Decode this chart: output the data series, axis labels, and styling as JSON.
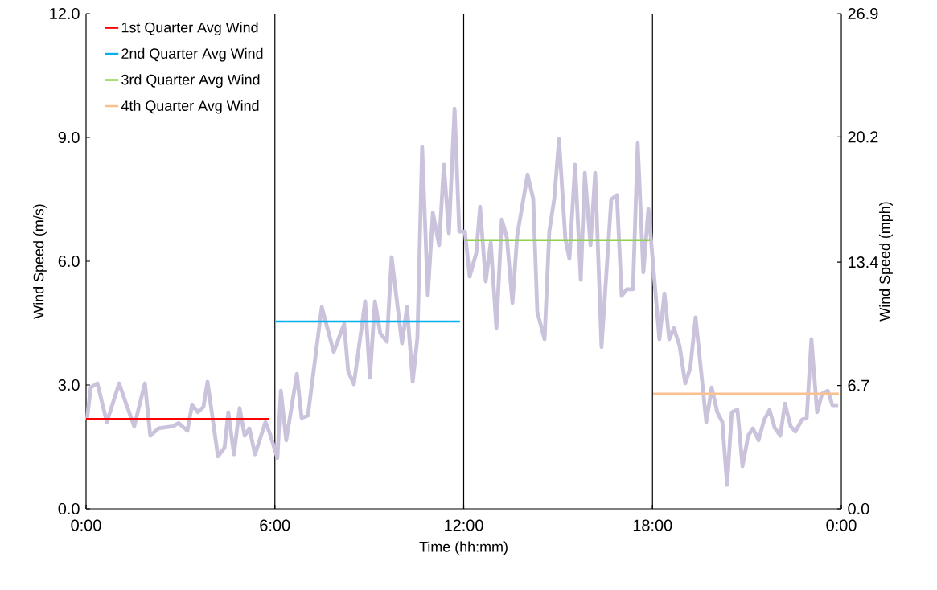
{
  "chart_data": {
    "type": "line",
    "xlabel": "Time (hh:mm)",
    "ylabel": "Wind Speed (m/s)",
    "y2label": "Wind Speed (mph)",
    "xlim": [
      0,
      24
    ],
    "ylim": [
      0,
      12
    ],
    "y2lim": [
      0,
      26.9
    ],
    "xticks": [
      {
        "value": 0,
        "label": "0:00"
      },
      {
        "value": 6,
        "label": "6:00"
      },
      {
        "value": 12,
        "label": "12:00"
      },
      {
        "value": 18,
        "label": "18:00"
      },
      {
        "value": 24,
        "label": "0:00"
      }
    ],
    "yticks": [
      {
        "value": 0,
        "label": "0.0"
      },
      {
        "value": 3,
        "label": "3.0"
      },
      {
        "value": 6,
        "label": "6.0"
      },
      {
        "value": 9,
        "label": "9.0"
      },
      {
        "value": 12,
        "label": "12.0"
      }
    ],
    "y2ticks": [
      {
        "value": 0,
        "label": "0.0"
      },
      6.7,
      13.4,
      20.2,
      26.9
    ],
    "legend": "top left",
    "grid": false,
    "ref_lines": [
      {
        "axis": "x",
        "value": 6,
        "color": "#000000"
      },
      {
        "axis": "x",
        "value": 12,
        "color": "#000000"
      },
      {
        "axis": "x",
        "value": 18,
        "color": "#000000"
      }
    ],
    "series": [
      {
        "color": "#cbc3dc",
        "x": [
          0.03,
          0.15,
          0.36,
          0.66,
          1.05,
          1.28,
          1.53,
          1.87,
          2.04,
          2.3,
          2.76,
          2.94,
          3.22,
          3.37,
          3.55,
          3.73,
          3.86,
          4.19,
          4.4,
          4.52,
          4.7,
          4.88,
          5.04,
          5.19,
          5.37,
          5.7,
          5.83,
          6.08,
          6.19,
          6.36,
          6.7,
          6.85,
          7.05,
          7.49,
          7.87,
          8.2,
          8.33,
          8.51,
          8.87,
          9.02,
          9.18,
          9.35,
          9.56,
          9.71,
          10.04,
          10.2,
          10.38,
          10.53,
          10.68,
          10.86,
          11.02,
          11.22,
          11.37,
          11.53,
          11.71,
          11.86,
          12.04,
          12.19,
          12.4,
          12.52,
          12.7,
          12.86,
          13.04,
          13.21,
          13.37,
          13.55,
          13.7,
          14.03,
          14.21,
          14.34,
          14.57,
          14.72,
          14.88,
          15.03,
          15.23,
          15.36,
          15.54,
          15.72,
          15.85,
          16.03,
          16.18,
          16.38,
          16.69,
          16.87,
          17.02,
          17.18,
          17.38,
          17.53,
          17.71,
          17.87,
          18.22,
          18.38,
          18.53,
          18.68,
          18.86,
          19.04,
          19.2,
          19.37,
          19.71,
          19.88,
          20.06,
          20.22,
          20.37,
          20.52,
          20.7,
          20.86,
          21.04,
          21.19,
          21.37,
          21.55,
          21.72,
          21.88,
          22.06,
          22.21,
          22.39,
          22.54,
          22.75,
          22.9,
          23.05,
          23.23,
          23.39,
          23.57,
          23.72,
          23.9
        ],
        "values": [
          2.16,
          2.94,
          3.04,
          2.1,
          3.04,
          2.53,
          2.0,
          3.04,
          1.77,
          1.95,
          2.0,
          2.08,
          1.89,
          2.53,
          2.34,
          2.47,
          3.08,
          1.27,
          1.48,
          2.34,
          1.32,
          2.44,
          1.77,
          1.95,
          1.32,
          2.1,
          1.85,
          1.23,
          2.86,
          1.66,
          3.27,
          2.2,
          2.26,
          4.89,
          3.8,
          4.48,
          3.33,
          3.02,
          5.03,
          3.18,
          5.03,
          4.25,
          4.05,
          6.1,
          4.01,
          4.89,
          3.08,
          4.15,
          8.77,
          5.18,
          7.17,
          6.39,
          8.34,
          6.68,
          9.7,
          6.72,
          6.72,
          5.63,
          6.2,
          7.32,
          5.51,
          6.45,
          4.38,
          7.01,
          6.58,
          4.99,
          6.62,
          8.1,
          7.52,
          4.77,
          4.11,
          6.72,
          7.52,
          8.96,
          6.55,
          6.06,
          8.34,
          5.55,
          8.14,
          6.39,
          8.14,
          3.92,
          7.5,
          7.6,
          5.16,
          5.32,
          5.32,
          8.86,
          5.73,
          7.27,
          4.11,
          5.22,
          4.11,
          4.38,
          3.95,
          3.04,
          3.41,
          4.64,
          2.1,
          2.94,
          2.34,
          2.1,
          0.58,
          2.34,
          2.4,
          1.03,
          1.77,
          1.95,
          1.66,
          2.16,
          2.4,
          1.97,
          1.77,
          2.55,
          2.0,
          1.87,
          2.16,
          2.2,
          4.11,
          2.34,
          2.79,
          2.86,
          2.51,
          2.51
        ]
      },
      {
        "name": "1st Quarter Avg Wind",
        "color": "#ff0000",
        "x": [
          0,
          5.83
        ],
        "values": [
          2.18,
          2.18
        ]
      },
      {
        "name": "2nd Quarter Avg Wind",
        "color": "#00b0f0",
        "x": [
          6.03,
          11.88
        ],
        "values": [
          4.54,
          4.54
        ]
      },
      {
        "name": "3rd Quarter Avg Wind",
        "color": "#92d050",
        "x": [
          12.04,
          17.92
        ],
        "values": [
          6.51,
          6.51
        ]
      },
      {
        "name": "4th Quarter Avg Wind",
        "color": "#fac090",
        "x": [
          18.02,
          23.92
        ],
        "values": [
          2.79,
          2.79
        ]
      }
    ]
  }
}
